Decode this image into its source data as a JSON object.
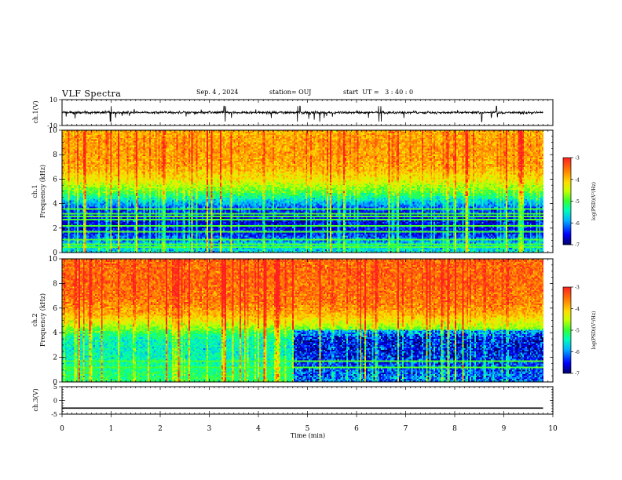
{
  "header": {
    "title": "VLF Spectra",
    "date": "Sep. 4 , 2024",
    "station": "station= OUJ",
    "start_ut": "start  UT =   3 : 40 : 0"
  },
  "colors": {
    "background": "#ffffff",
    "axis": "#000000",
    "colormap": [
      "#000066",
      "#0000ff",
      "#00b4ff",
      "#00ffb4",
      "#33ff33",
      "#c8ff00",
      "#ffdc00",
      "#ff8000",
      "#ff2020"
    ]
  },
  "chart_data": [
    {
      "type": "line",
      "panel": "ch.1 waveform",
      "ylabel": "ch.1(V)",
      "yticks": [
        "10",
        "-10"
      ],
      "ylim": [
        -10,
        10
      ],
      "xlim": [
        0,
        10
      ],
      "baseline": 0,
      "spike_times_min": [
        0.98,
        1.0,
        3.3,
        3.33,
        4.8,
        4.85,
        5.25,
        6.45,
        6.5,
        8.55,
        8.85
      ],
      "amplitude_range_v": [
        -7,
        5
      ]
    },
    {
      "type": "heatmap",
      "panel": "ch.1 spectrogram",
      "ylabel_line1": "ch.1",
      "ylabel_line2": "Frequency (kHz)",
      "yticks": [
        "0",
        "2",
        "4",
        "6",
        "8",
        "10"
      ],
      "ylim": [
        0,
        10
      ],
      "xlim": [
        0,
        9.8
      ],
      "colorbar": {
        "label": "log(PSD)(V²/Hz)",
        "ticks": [
          "-3",
          "-4",
          "-5",
          "-6",
          "-7"
        ],
        "range": [
          -7,
          -3
        ]
      },
      "profile": [
        {
          "f_khz": 0.5,
          "log_psd": -5.8
        },
        {
          "f_khz": 1.5,
          "log_psd": -6.5
        },
        {
          "f_khz": 2.5,
          "log_psd": -6.6
        },
        {
          "f_khz": 3.5,
          "log_psd": -6.4
        },
        {
          "f_khz": 4.2,
          "log_psd": -5.8
        },
        {
          "f_khz": 5.0,
          "log_psd": -4.9
        },
        {
          "f_khz": 6.0,
          "log_psd": -4.2
        },
        {
          "f_khz": 7.0,
          "log_psd": -3.8
        },
        {
          "f_khz": 8.0,
          "log_psd": -3.7
        },
        {
          "f_khz": 9.0,
          "log_psd": -3.7
        },
        {
          "f_khz": 10.0,
          "log_psd": -3.8
        }
      ],
      "narrowband_lines_khz": [
        0.4,
        0.6,
        1.0,
        1.6,
        2.1,
        2.6,
        2.9,
        3.2,
        3.6
      ]
    },
    {
      "type": "heatmap",
      "panel": "ch.2 spectrogram",
      "ylabel_line1": "ch.2",
      "ylabel_line2": "Frequency (kHz)",
      "yticks": [
        "0",
        "2",
        "4",
        "6",
        "8",
        "10"
      ],
      "ylim": [
        0,
        10
      ],
      "xlim": [
        0,
        9.8
      ],
      "colorbar": {
        "label": "log(PSD)(V²/Hz)",
        "ticks": [
          "-3",
          "-4",
          "-5",
          "-6",
          "-7"
        ],
        "range": [
          -7,
          -3
        ]
      },
      "profile": [
        {
          "f_khz": 0.5,
          "log_psd": -5.2
        },
        {
          "f_khz": 1.5,
          "log_psd": -5.4
        },
        {
          "f_khz": 2.5,
          "log_psd": -5.6
        },
        {
          "f_khz": 3.5,
          "log_psd": -5.5
        },
        {
          "f_khz": 4.5,
          "log_psd": -4.6
        },
        {
          "f_khz": 5.5,
          "log_psd": -3.8
        },
        {
          "f_khz": 6.5,
          "log_psd": -3.5
        },
        {
          "f_khz": 8.0,
          "log_psd": -3.4
        },
        {
          "f_khz": 10.0,
          "log_psd": -3.4
        }
      ],
      "quiet_interval_min": [
        4.7,
        9.8
      ],
      "narrowband_lines_khz": [
        1.2,
        1.6
      ]
    },
    {
      "type": "line",
      "panel": "ch.3 waveform",
      "ylabel": "ch.3(V)",
      "yticks": [
        "5",
        "0",
        "-5"
      ],
      "ylim": [
        -5,
        5
      ],
      "xlim": [
        0,
        10
      ],
      "value_v": -2.8,
      "xlabel": "Time (min)",
      "xticks": [
        "0",
        "1",
        "2",
        "3",
        "4",
        "5",
        "6",
        "7",
        "8",
        "9",
        "10"
      ]
    }
  ]
}
